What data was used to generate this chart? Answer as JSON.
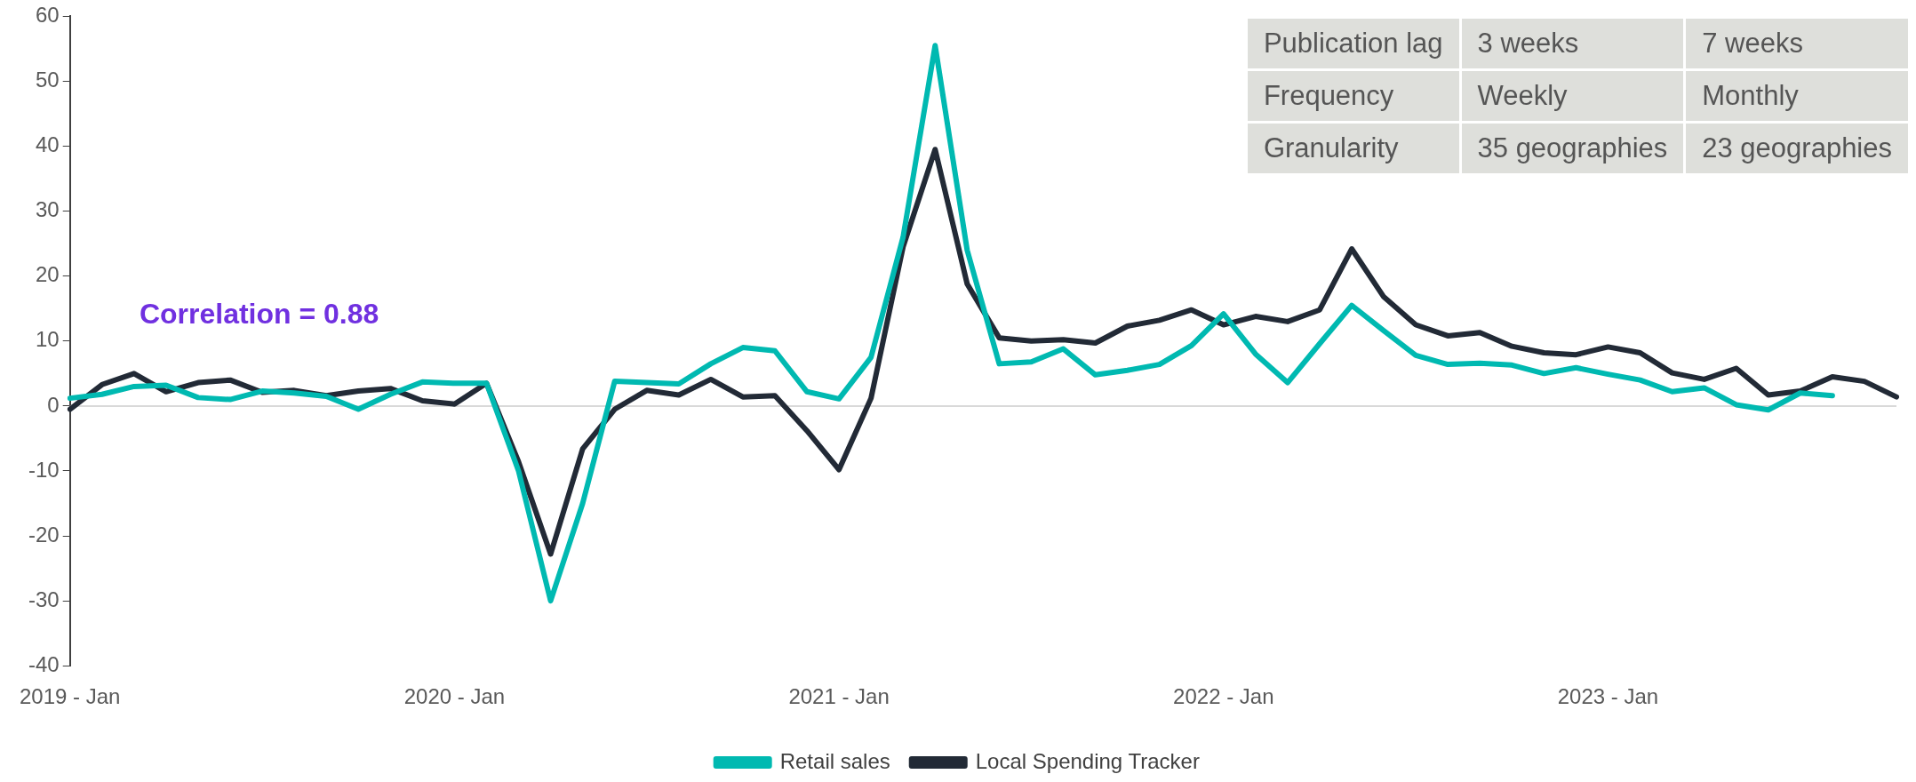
{
  "chart_data": {
    "type": "line",
    "categories": [
      "2019 - Jan",
      null,
      null,
      null,
      null,
      null,
      null,
      null,
      null,
      null,
      null,
      null,
      "2020 - Jan",
      null,
      null,
      null,
      null,
      null,
      null,
      null,
      null,
      null,
      null,
      null,
      "2021 - Jan",
      null,
      null,
      null,
      null,
      null,
      null,
      null,
      null,
      null,
      null,
      null,
      "2022 - Jan",
      null,
      null,
      null,
      null,
      null,
      null,
      null,
      null,
      null,
      null,
      null,
      "2023 - Jan",
      null,
      null,
      null,
      null,
      null,
      null,
      null,
      null,
      null
    ],
    "series": [
      {
        "name": "Retail sales",
        "color": "#00b9b1",
        "values": [
          1.2,
          1.8,
          3,
          3.2,
          1.3,
          1,
          2.3,
          2,
          1.5,
          -0.5,
          1.8,
          3.7,
          3.5,
          3.5,
          -10,
          -30,
          -15,
          3.8,
          3.6,
          3.4,
          6.5,
          9,
          8.5,
          2.2,
          1.1,
          7.5,
          26,
          55.5,
          24,
          6.5,
          6.8,
          8.8,
          4.8,
          5.5,
          6.4,
          9.3,
          14.2,
          8,
          3.6,
          9.6,
          15.5,
          11.6,
          7.8,
          6.4,
          6.6,
          6.3,
          5,
          5.9,
          4.9,
          4,
          2.2,
          2.8,
          0.2,
          -0.6,
          2,
          1.6,
          null,
          null
        ]
      },
      {
        "name": "Local Spending Tracker",
        "color": "#222a36",
        "values": [
          -0.5,
          3.3,
          5,
          2.2,
          3.6,
          4,
          2.1,
          2.4,
          1.6,
          2.3,
          2.7,
          0.8,
          0.3,
          3.5,
          -8.6,
          -22.8,
          -6.6,
          -0.5,
          2.4,
          1.7,
          4.1,
          1.4,
          1.6,
          -3.8,
          -9.8,
          1.2,
          24.5,
          39.5,
          18.8,
          10.5,
          10,
          10.2,
          9.7,
          12.3,
          13.2,
          14.8,
          12.5,
          13.8,
          13,
          14.8,
          24.2,
          16.8,
          12.5,
          10.8,
          11.3,
          9.2,
          8.2,
          7.9,
          9.1,
          8.2,
          5.1,
          4.1,
          5.8,
          1.7,
          2.3,
          4.5,
          3.8,
          1.4
        ]
      }
    ],
    "ylim": [
      -40,
      60
    ],
    "yticks": [
      -40,
      -30,
      -20,
      -10,
      0,
      10,
      20,
      30,
      40,
      50,
      60
    ],
    "ref_lines": [
      {
        "axis": "y",
        "value": 0,
        "color": "#d9d9d9"
      }
    ],
    "legend": "bottom",
    "marker": "none",
    "line_style": "solid",
    "annotations": [
      "Correlation = 0.88",
      "Publication lag",
      "3 weeks",
      "7 weeks",
      "Frequency",
      "Weekly",
      "Monthly",
      "Granularity",
      "35 geographies",
      "23 geographies"
    ]
  }
}
